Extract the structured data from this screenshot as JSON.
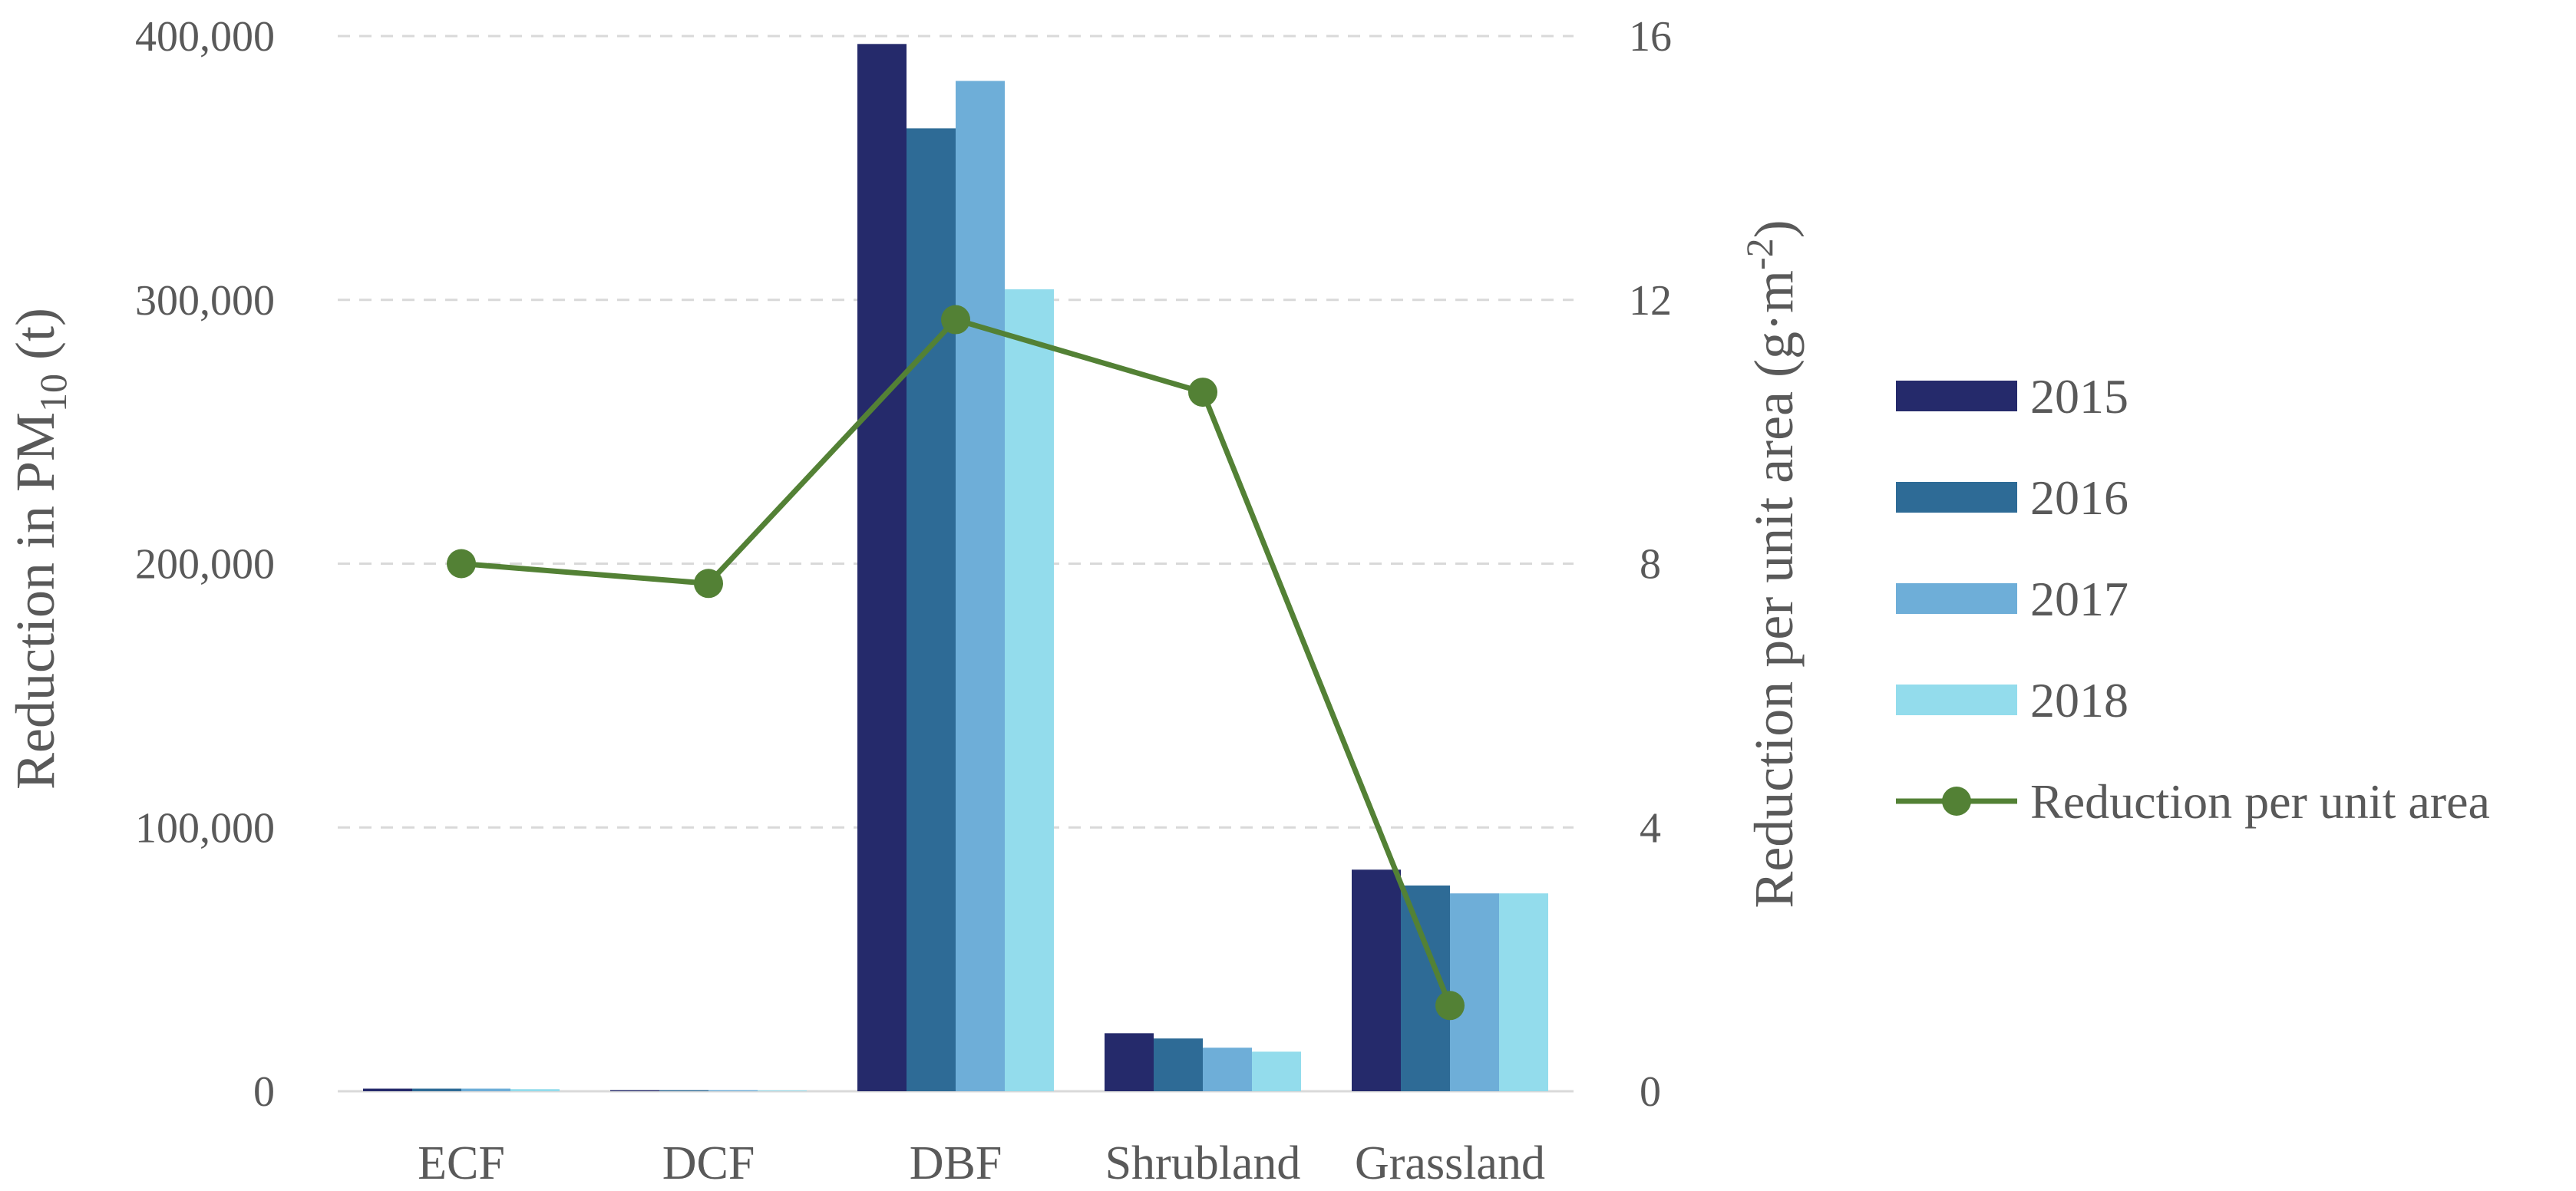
{
  "chart_data": {
    "type": "bar+line",
    "categories": [
      "ECF",
      "DCF",
      "DBF",
      "Shrubland",
      "Grassland"
    ],
    "series": [
      {
        "name": "2015",
        "values": [
          1000,
          400,
          397000,
          22000,
          84000
        ],
        "color": "#252a6b"
      },
      {
        "name": "2016",
        "values": [
          1000,
          400,
          365000,
          20000,
          78000
        ],
        "color": "#2e6b96"
      },
      {
        "name": "2017",
        "values": [
          1000,
          400,
          383000,
          16500,
          75000
        ],
        "color": "#6eaed8"
      },
      {
        "name": "2018",
        "values": [
          800,
          300,
          304000,
          15000,
          75000
        ],
        "color": "#93dcec"
      }
    ],
    "line_series": {
      "name": "Reduction per unit area",
      "values": [
        8.0,
        7.7,
        11.7,
        10.6,
        1.3
      ],
      "color": "#538135",
      "axis": "right"
    },
    "left_axis": {
      "label_text": "Reduction in PM",
      "label_subscript": "10",
      "label_suffix": " (t)",
      "ylim": [
        0,
        400000
      ],
      "ticks": [
        0,
        100000,
        200000,
        300000,
        400000
      ],
      "tick_labels": [
        "0",
        "100,000",
        "200,000",
        "300,000",
        "400,000"
      ]
    },
    "right_axis": {
      "label_text": "Reduction per unit area (g·m",
      "label_superscript": "-2",
      "label_suffix": ")",
      "ylim": [
        0,
        16
      ],
      "ticks": [
        0,
        4,
        8,
        12,
        16
      ],
      "tick_labels": [
        "0",
        "4",
        "8",
        "12",
        "16"
      ]
    },
    "grid": true,
    "legend_position": "right"
  }
}
